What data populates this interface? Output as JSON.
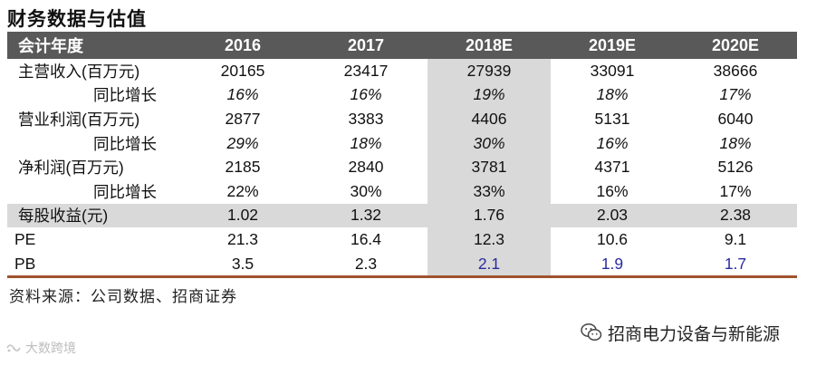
{
  "title": "财务数据与估值",
  "table": {
    "header": [
      "会计年度",
      "2016",
      "2017",
      "2018E",
      "2019E",
      "2020E"
    ],
    "rows": [
      {
        "label": "主营收入(百万元)",
        "values": [
          "20165",
          "23417",
          "27939",
          "33091",
          "38666"
        ],
        "style": "plain"
      },
      {
        "label": "同比增长",
        "values": [
          "16%",
          "16%",
          "19%",
          "18%",
          "17%"
        ],
        "style": "italic-sub"
      },
      {
        "label": "营业利润(百万元)",
        "values": [
          "2877",
          "3383",
          "4406",
          "5131",
          "6040"
        ],
        "style": "plain"
      },
      {
        "label": "同比增长",
        "values": [
          "29%",
          "18%",
          "30%",
          "16%",
          "18%"
        ],
        "style": "italic-sub"
      },
      {
        "label": "净利润(百万元)",
        "values": [
          "2185",
          "2840",
          "3781",
          "4371",
          "5126"
        ],
        "style": "plain"
      },
      {
        "label": "同比增长",
        "values": [
          "22%",
          "30%",
          "33%",
          "16%",
          "17%"
        ],
        "style": "sub"
      },
      {
        "label": "每股收益(元)",
        "values": [
          "1.02",
          "1.32",
          "1.76",
          "2.03",
          "2.38"
        ],
        "style": "shaded"
      },
      {
        "label": "PE",
        "values": [
          "21.3",
          "16.4",
          "12.3",
          "10.6",
          "9.1"
        ],
        "style": "en"
      },
      {
        "label": "PB",
        "values": [
          "3.5",
          "2.3",
          "2.1",
          "1.9",
          "1.7"
        ],
        "style": "en-blue"
      }
    ]
  },
  "source": "资料来源：公司数据、招商证券",
  "wechat_account": "招商电力设备与新能源",
  "watermark": "大数跨境",
  "colors": {
    "header_bg": "#595959",
    "shade": "#d9d9d9",
    "rule": "#a0522d",
    "blue_text": "#2a2aa0"
  }
}
